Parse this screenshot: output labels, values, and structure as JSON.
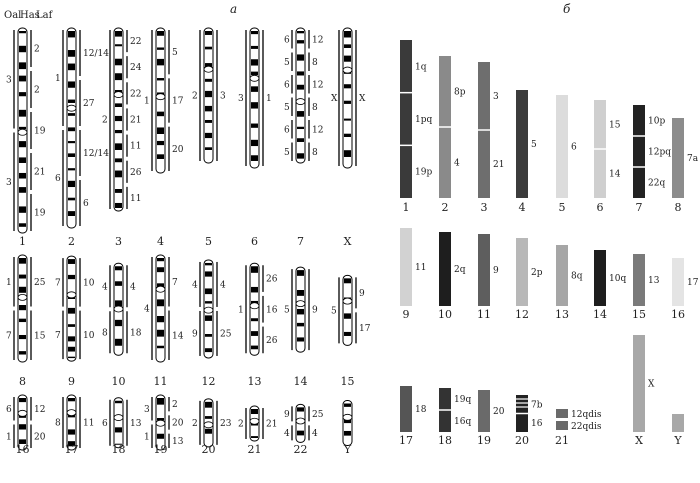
{
  "panels": {
    "a": "а",
    "b": "б"
  },
  "species_headers": [
    "Oal",
    "Has",
    "Laf"
  ],
  "panel_a": {
    "rows": [
      [
        {
          "label": "1",
          "oal": [
            "3",
            "3"
          ],
          "laf": [
            "2",
            "2",
            "19",
            "21",
            "19"
          ]
        },
        {
          "label": "2",
          "oal": [
            "1",
            "6"
          ],
          "laf": [
            "12/14",
            "27",
            "12/14",
            "6"
          ]
        },
        {
          "label": "3",
          "oal": [
            "2"
          ],
          "laf": [
            "22",
            "24",
            "22",
            "21",
            "11",
            "26",
            "11"
          ]
        },
        {
          "label": "4",
          "oal": [
            "1"
          ],
          "laf": [
            "5",
            "17",
            "20"
          ]
        },
        {
          "label": "5",
          "oal": [
            "2"
          ],
          "laf": [
            "3"
          ]
        },
        {
          "label": "6",
          "oal": [
            "3"
          ],
          "laf": [
            "1"
          ]
        },
        {
          "label": "7",
          "oal": [
            "6",
            "5",
            "6",
            "5",
            "6",
            "5"
          ],
          "laf": [
            "12",
            "8",
            "12",
            "8",
            "12",
            "8"
          ]
        },
        {
          "label": "X",
          "oal": [
            "X"
          ],
          "laf": [
            "X"
          ]
        }
      ],
      [
        {
          "label": "8",
          "oal": [
            "1",
            "7"
          ],
          "laf": [
            "25",
            "15"
          ]
        },
        {
          "label": "9",
          "oal": [
            "7",
            "7"
          ],
          "laf": [
            "10",
            "10"
          ]
        },
        {
          "label": "10",
          "oal": [
            "4",
            "8"
          ],
          "laf": [
            "4",
            "18"
          ]
        },
        {
          "label": "11",
          "oal": [
            "4"
          ],
          "laf": [
            "7",
            "14"
          ]
        },
        {
          "label": "12",
          "oal": [
            "4",
            "9"
          ],
          "laf": [
            "4",
            "25"
          ]
        },
        {
          "label": "13",
          "oal": [
            "1"
          ],
          "laf": [
            "26",
            "16",
            "26"
          ]
        },
        {
          "label": "14",
          "oal": [
            "5"
          ],
          "laf": [
            "9"
          ]
        },
        {
          "label": "15",
          "oal": [
            "5"
          ],
          "laf": [
            "9",
            "17"
          ]
        }
      ],
      [
        {
          "label": "16",
          "oal": [
            "6",
            "1"
          ],
          "laf": [
            "12",
            "20"
          ]
        },
        {
          "label": "17",
          "oal": [
            "8"
          ],
          "laf": [
            "11"
          ]
        },
        {
          "label": "18",
          "oal": [
            "6"
          ],
          "laf": [
            "13"
          ]
        },
        {
          "label": "19",
          "oal": [
            "3",
            "1"
          ],
          "laf": [
            "2",
            "20",
            "13"
          ]
        },
        {
          "label": "20",
          "oal": [
            "2"
          ],
          "laf": [
            "23"
          ]
        },
        {
          "label": "21",
          "oal": [
            "2"
          ],
          "laf": [
            "21"
          ]
        },
        {
          "label": "22",
          "oal": [
            "9",
            "4"
          ],
          "laf": [
            "25",
            "4"
          ]
        },
        {
          "label": "Y",
          "oal": [],
          "laf": []
        }
      ]
    ]
  },
  "panel_b": {
    "chromosomes": [
      {
        "label": "1",
        "segments": [
          {
            "text": "1q",
            "color": "#3a3a3a"
          },
          {
            "text": "1pq",
            "color": "#3a3a3a"
          },
          {
            "text": "19p",
            "color": "#3a3a3a"
          }
        ]
      },
      {
        "label": "2",
        "segments": [
          {
            "text": "8p",
            "color": "#8a8a8a"
          },
          {
            "text": "4",
            "color": "#8a8a8a"
          }
        ]
      },
      {
        "label": "3",
        "segments": [
          {
            "text": "3",
            "color": "#6e6e6e"
          },
          {
            "text": "21",
            "color": "#6e6e6e"
          }
        ]
      },
      {
        "label": "4",
        "segments": [
          {
            "text": "5",
            "color": "#3c3c3c"
          }
        ]
      },
      {
        "label": "5",
        "segments": [
          {
            "text": "6",
            "color": "#dcdcdc"
          }
        ]
      },
      {
        "label": "6",
        "segments": [
          {
            "text": "15",
            "color": "#cfcfcf"
          },
          {
            "text": "14",
            "color": "#cfcfcf"
          }
        ]
      },
      {
        "label": "7",
        "segments": [
          {
            "text": "10p",
            "color": "#222222"
          },
          {
            "text": "12pq",
            "color": "#222222"
          },
          {
            "text": "22q",
            "color": "#222222"
          }
        ]
      },
      {
        "label": "8",
        "segments": [
          {
            "text": "7a",
            "color": "#8c8c8c"
          }
        ]
      },
      {
        "label": "9",
        "segments": [
          {
            "text": "11",
            "color": "#d2d2d2"
          }
        ]
      },
      {
        "label": "10",
        "segments": [
          {
            "text": "2q",
            "color": "#1e1e1e"
          }
        ]
      },
      {
        "label": "11",
        "segments": [
          {
            "text": "9",
            "color": "#5e5e5e"
          }
        ]
      },
      {
        "label": "12",
        "segments": [
          {
            "text": "2p",
            "color": "#b8b8b8"
          }
        ]
      },
      {
        "label": "13",
        "segments": [
          {
            "text": "8q",
            "color": "#a6a6a6"
          }
        ]
      },
      {
        "label": "14",
        "segments": [
          {
            "text": "10q",
            "color": "#1e1e1e"
          }
        ]
      },
      {
        "label": "15",
        "segments": [
          {
            "text": "13",
            "color": "#7a7a7a"
          }
        ]
      },
      {
        "label": "16",
        "segments": [
          {
            "text": "17",
            "color": "#e4e4e4"
          }
        ]
      },
      {
        "label": "17",
        "segments": [
          {
            "text": "18",
            "color": "#555555"
          }
        ]
      },
      {
        "label": "18",
        "segments": [
          {
            "text": "19q",
            "color": "#333333"
          },
          {
            "text": "16q",
            "color": "#333333"
          }
        ]
      },
      {
        "label": "19",
        "segments": [
          {
            "text": "20",
            "color": "#6a6a6a"
          }
        ]
      },
      {
        "label": "20",
        "segments": [
          {
            "text": "7b",
            "color": "#222222"
          },
          {
            "text": "16",
            "color": "#222222"
          }
        ]
      },
      {
        "label": "21",
        "segments": [
          {
            "text": "12qdis",
            "color": "#6a6a6a"
          },
          {
            "text": "22qdis",
            "color": "#6a6a6a"
          }
        ]
      },
      {
        "label": "X",
        "segments": [
          {
            "text": "X",
            "color": "#a8a8a8"
          }
        ]
      },
      {
        "label": "Y",
        "segments": [
          {
            "text": "",
            "color": "#a8a8a8"
          }
        ]
      }
    ]
  }
}
